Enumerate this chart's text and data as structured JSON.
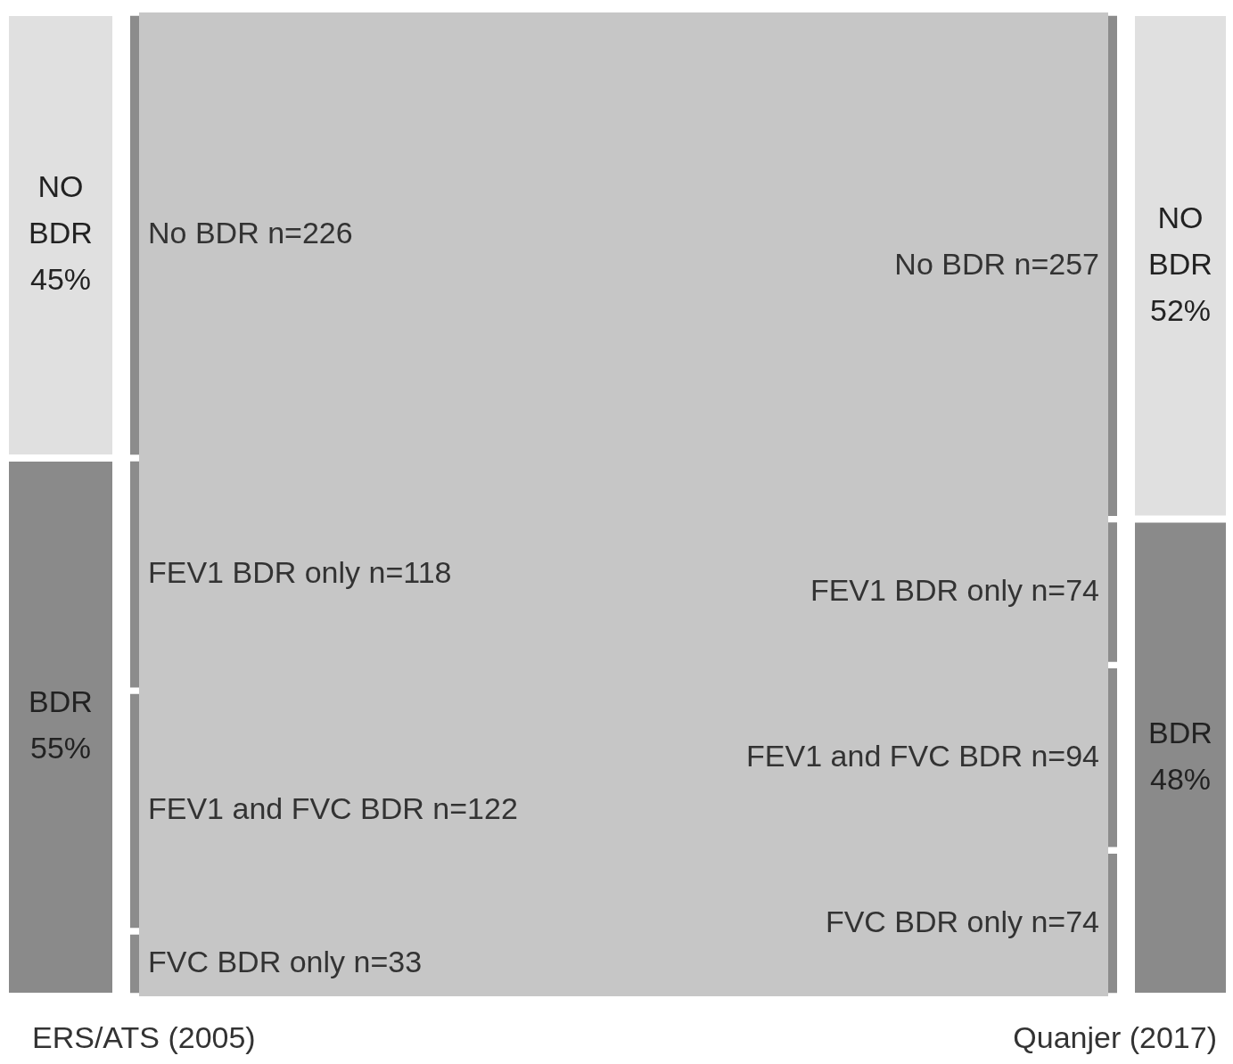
{
  "chart_data": {
    "type": "other",
    "categories": [
      "ERS/ATS (2005)",
      "Quanjer (2017)"
    ],
    "series": [
      {
        "color": "#8c8c8c",
        "values": [
          33,
          74
        ],
        "value_labels": [
          "FVC BDR only n=33",
          "FVC BDR only n=74"
        ]
      },
      {
        "color": "#8c8c8c",
        "values": [
          122,
          94
        ],
        "value_labels": [
          "FEV1 and FVC BDR n=122",
          "FEV1 and FVC BDR n=94"
        ]
      },
      {
        "color": "#8c8c8c",
        "values": [
          118,
          74
        ],
        "value_labels": [
          "FEV1 BDR only n=118",
          "FEV1 BDR only n=74"
        ]
      },
      {
        "color": "#8c8c8c",
        "values": [
          226,
          257
        ],
        "value_labels": [
          "No BDR n=226",
          "No BDR n=257"
        ]
      }
    ],
    "annotations": [
      "NO BDR 45%",
      "BDR 55%",
      "NO BDR 52%",
      "BDR 48%"
    ]
  }
}
